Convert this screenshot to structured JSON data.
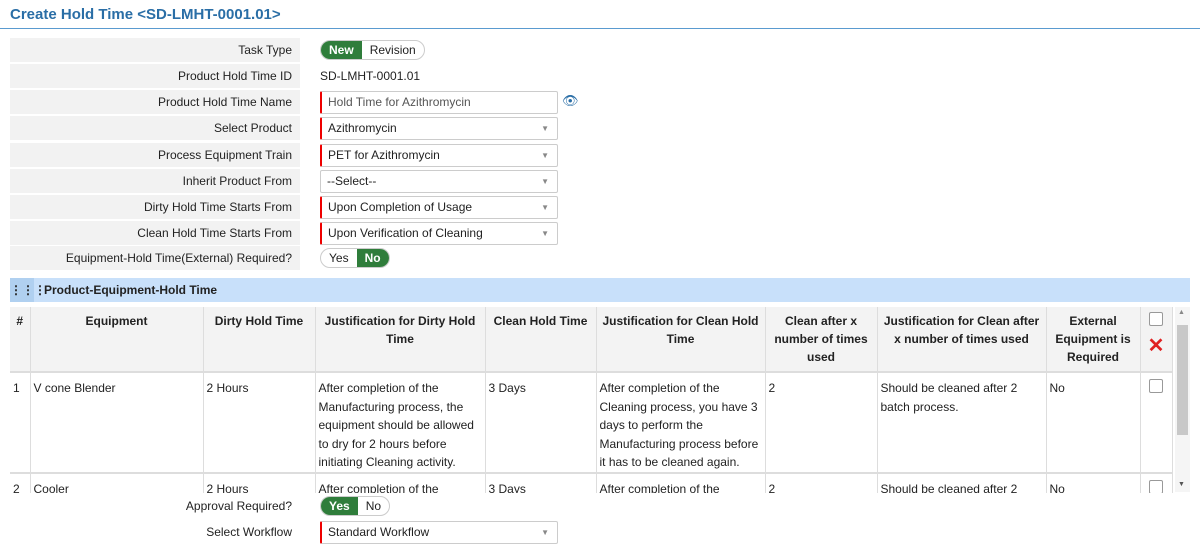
{
  "title": "Create Hold Time <SD-LMHT-0001.01>",
  "form": {
    "task_type": {
      "label": "Task Type",
      "options": [
        "New",
        "Revision"
      ],
      "selected": "New"
    },
    "id": {
      "label": "Product Hold Time ID",
      "value": "SD-LMHT-0001.01"
    },
    "name": {
      "label": "Product Hold Time Name",
      "value": "Hold Time for Azithromycin",
      "icon": "eye-icon"
    },
    "product": {
      "label": "Select Product",
      "value": "Azithromycin"
    },
    "train": {
      "label": "Process Equipment Train",
      "value": "PET for Azithromycin"
    },
    "inherit": {
      "label": "Inherit Product From",
      "value": "--Select--"
    },
    "dirty_start": {
      "label": "Dirty Hold Time Starts From",
      "value": "Upon Completion of Usage"
    },
    "clean_start": {
      "label": "Clean Hold Time Starts From",
      "value": "Upon Verification of Cleaning"
    },
    "external": {
      "label": "Equipment-Hold Time(External) Required?",
      "options": [
        "Yes",
        "No"
      ],
      "selected": "No"
    }
  },
  "section": {
    "title": "Product-Equipment-Hold Time",
    "icon": "grid-icon"
  },
  "table": {
    "headers": [
      "#",
      "Equipment",
      "Dirty Hold Time",
      "Justification for Dirty Hold Time",
      "Clean Hold Time",
      "Justification for Clean Hold Time",
      "Clean after x number of times used",
      "Justification for Clean after x number of times used",
      "External Equipment is Required"
    ],
    "rows": [
      [
        "1",
        "V cone Blender",
        "2 Hours",
        "After completion of the Manufacturing process, the equipment should be allowed to dry for 2 hours before initiating Cleaning activity.",
        "3 Days",
        "After completion of the Cleaning process, you have 3 days to perform the Manufacturing process before it has to be cleaned again.",
        "2",
        "Should be cleaned after 2 batch process.",
        "No"
      ],
      [
        "2",
        "Cooler",
        "2 Hours",
        "After completion of the",
        "3 Days",
        "After completion of the",
        "2",
        "Should be cleaned after 2",
        "No"
      ]
    ]
  },
  "approval": {
    "label": "Approval Required?",
    "options": [
      "Yes",
      "No"
    ],
    "selected": "Yes"
  },
  "workflow": {
    "label": "Select Workflow",
    "value": "Standard Workflow"
  },
  "colors": {
    "accent": "#2a6ea6",
    "toggle_on": "#2f7d3b",
    "required": "#e00000",
    "band": "#c8e0fa"
  }
}
